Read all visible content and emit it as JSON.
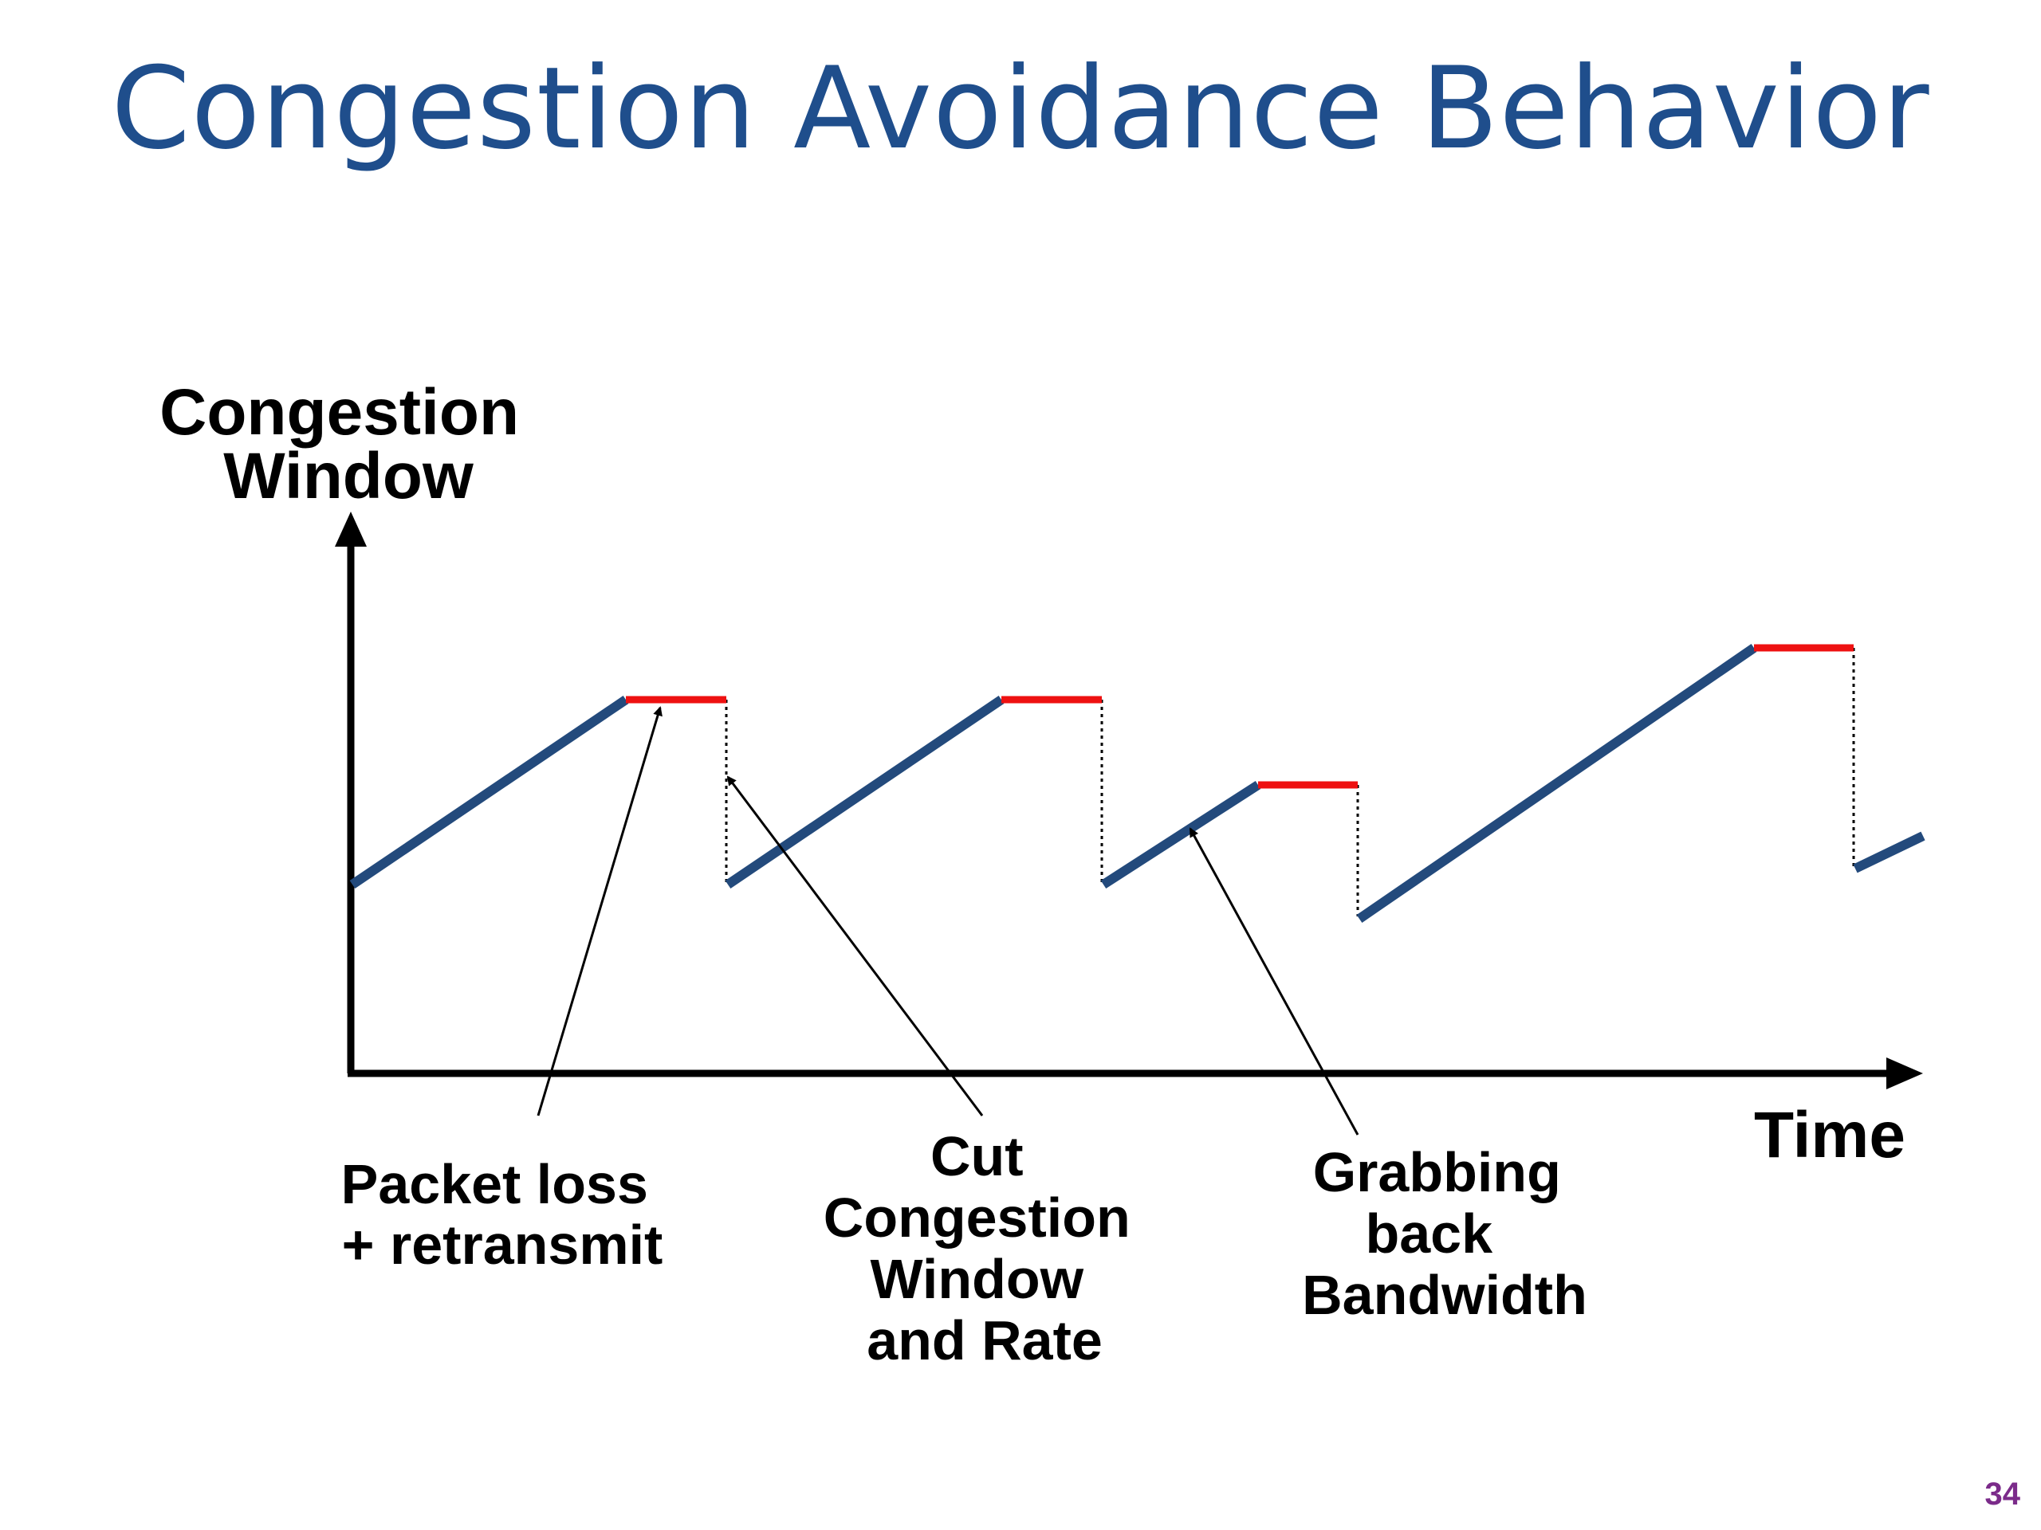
{
  "title": "Congestion Avoidance Behavior",
  "colors": {
    "title": "#1f4e8c",
    "window_line": "#234a7c",
    "plateau": "#ee1111",
    "axis": "#000000",
    "page_number": "#7b2b8a"
  },
  "diagram": {
    "y_axis_label": [
      "Congestion",
      "Window"
    ],
    "x_axis_label": "Time",
    "annotations": {
      "packet_loss": [
        "Packet loss",
        "+ retransmit"
      ],
      "cut_window": [
        "Cut",
        "Congestion",
        "Window",
        "and Rate"
      ],
      "grabbing_back": [
        "Grabbing",
        "back",
        "Bandwidth"
      ]
    }
  },
  "page_number": "34"
}
